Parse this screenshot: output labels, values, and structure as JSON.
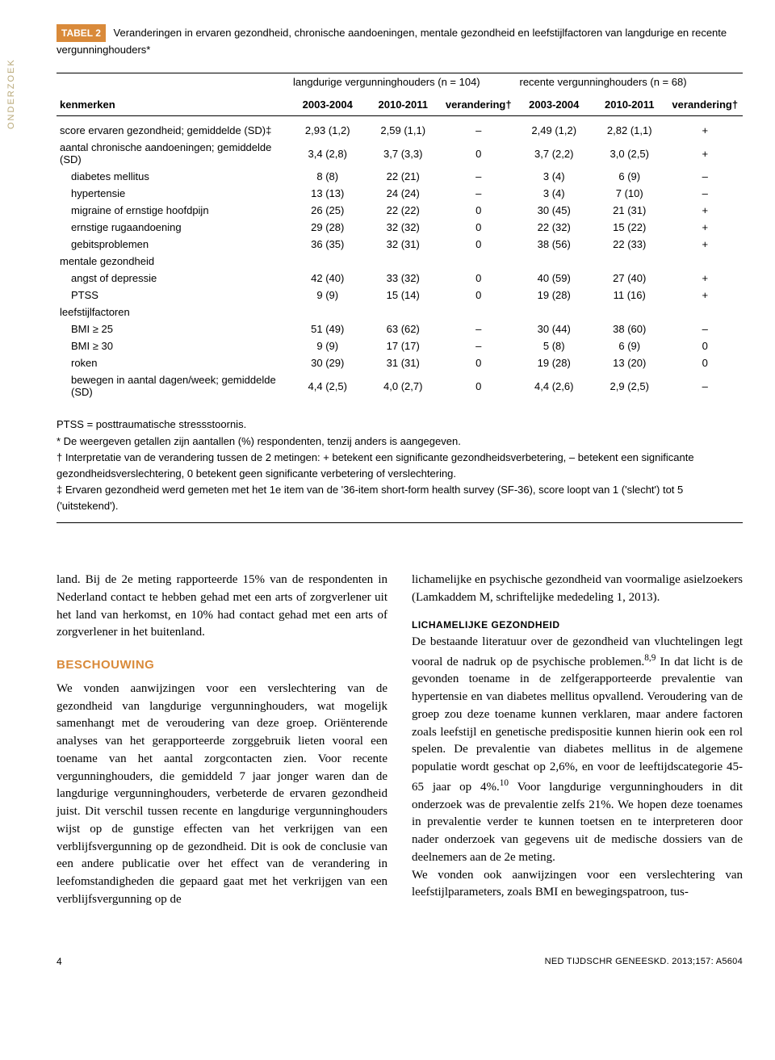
{
  "sidebar": {
    "label": "ONDERZOEK"
  },
  "table": {
    "marker": "TABEL 2",
    "caption": "Veranderingen in ervaren gezondheid, chronische aandoeningen, mentale gezondheid en leefstijlfactoren van langdurige en recente vergunninghouders*",
    "groupA": "langdurige vergunninghouders (n = 104)",
    "groupB": "recente vergunninghouders (n = 68)",
    "columns": [
      "kenmerken",
      "2003-2004",
      "2010-2011",
      "verandering†",
      "2003-2004",
      "2010-2011",
      "verandering†"
    ],
    "rows": [
      {
        "label": "score ervaren gezondheid; gemiddelde (SD)‡",
        "indent": 0,
        "c": [
          "2,93 (1,2)",
          "2,59 (1,1)",
          "–",
          "2,49 (1,2)",
          "2,82 (1,1)",
          "+"
        ]
      },
      {
        "label": "aantal chronische aandoeningen; gemiddelde (SD)",
        "indent": 0,
        "c": [
          "3,4 (2,8)",
          "3,7 (3,3)",
          "0",
          "3,7 (2,2)",
          "3,0 (2,5)",
          "+"
        ]
      },
      {
        "label": "diabetes mellitus",
        "indent": 1,
        "c": [
          "8 (8)",
          "22 (21)",
          "–",
          "3 (4)",
          "6 (9)",
          "–"
        ]
      },
      {
        "label": "hypertensie",
        "indent": 1,
        "c": [
          "13 (13)",
          "24 (24)",
          "–",
          "3 (4)",
          "7 (10)",
          "–"
        ]
      },
      {
        "label": "migraine of ernstige hoofdpijn",
        "indent": 1,
        "c": [
          "26 (25)",
          "22 (22)",
          "0",
          "30 (45)",
          "21 (31)",
          "+"
        ]
      },
      {
        "label": "ernstige rugaandoening",
        "indent": 1,
        "c": [
          "29 (28)",
          "32 (32)",
          "0",
          "22 (32)",
          "15 (22)",
          "+"
        ]
      },
      {
        "label": "gebitsproblemen",
        "indent": 1,
        "c": [
          "36 (35)",
          "32 (31)",
          "0",
          "38 (56)",
          "22 (33)",
          "+"
        ]
      },
      {
        "label": "mentale gezondheid",
        "indent": 0,
        "c": [
          "",
          "",
          "",
          "",
          "",
          ""
        ]
      },
      {
        "label": "angst of depressie",
        "indent": 1,
        "c": [
          "42 (40)",
          "33 (32)",
          "0",
          "40 (59)",
          "27 (40)",
          "+"
        ]
      },
      {
        "label": "PTSS",
        "indent": 1,
        "c": [
          "9 (9)",
          "15 (14)",
          "0",
          "19 (28)",
          "11 (16)",
          "+"
        ]
      },
      {
        "label": "leefstijlfactoren",
        "indent": 0,
        "c": [
          "",
          "",
          "",
          "",
          "",
          ""
        ]
      },
      {
        "label": "BMI ≥ 25",
        "indent": 1,
        "c": [
          "51 (49)",
          "63 (62)",
          "–",
          "30 (44)",
          "38 (60)",
          "–"
        ]
      },
      {
        "label": "BMI ≥ 30",
        "indent": 1,
        "c": [
          "9 (9)",
          "17 (17)",
          "–",
          "5 (8)",
          "6 (9)",
          "0"
        ]
      },
      {
        "label": "roken",
        "indent": 1,
        "c": [
          "30 (29)",
          "31 (31)",
          "0",
          "19 (28)",
          "13 (20)",
          "0"
        ]
      },
      {
        "label": "bewegen in aantal dagen/week; gemiddelde (SD)",
        "indent": 1,
        "c": [
          "4,4 (2,5)",
          "4,0 (2,7)",
          "0",
          "4,4 (2,6)",
          "2,9 (2,5)",
          "–"
        ]
      }
    ],
    "footnotes": [
      "PTSS = posttraumatische stressstoornis.",
      "* De weergeven getallen zijn aantallen (%) respondenten, tenzij anders is aangegeven.",
      "† Interpretatie van de verandering tussen de 2 metingen: + betekent een significante gezondheidsverbetering, – betekent een significante gezondheidsverslechtering, 0 betekent geen significante verbetering of verslechtering.",
      "‡ Ervaren gezondheid werd gemeten met het 1e item van de '36-item short-form health survey (SF-36), score loopt van 1 ('slecht') tot 5 ('uitstekend')."
    ]
  },
  "body": {
    "left": {
      "p1": "land. Bij de 2e meting rapporteerde 15% van de respondenten in Nederland contact te hebben gehad met een arts of zorgverlener uit het land van herkomst, en 10% had contact gehad met een arts of zorgverlener in het buitenland.",
      "head": "BESCHOUWING",
      "p2": "We vonden aanwijzingen voor een verslechtering van de gezondheid van langdurige vergunninghouders, wat mogelijk samenhangt met de veroudering van deze groep. Oriënterende analyses van het gerapporteerde zorggebruik lieten vooral een toename van het aantal zorgcontacten zien. Voor recente vergunninghouders, die gemiddeld 7 jaar jonger waren dan de langdurige vergunninghouders, verbeterde de ervaren gezondheid juist. Dit verschil tussen recente en langdurige vergunninghouders wijst op de gunstige effecten van het verkrijgen van een verblijfsvergunning op de gezondheid. Dit is ook de conclusie van een andere publicatie over het effect van de verandering in leefomstandigheden die gepaard gaat met het verkrijgen van een verblijfsvergunning op de"
    },
    "right": {
      "p1": "lichamelijke en psychische gezondheid van voormalige asielzoekers (Lamkaddem M, schriftelijke mededeling 1, 2013).",
      "sub": "LICHAMELIJKE GEZONDHEID",
      "p2a": "De bestaande literatuur over de gezondheid van vluchtelingen legt vooral de nadruk op de psychische problemen.",
      "p2b": " In dat licht is de gevonden toename in de zelfgerapporteerde prevalentie van hypertensie en van diabetes mellitus opvallend. Veroudering van de groep zou deze toename kunnen verklaren, maar andere factoren zoals leefstijl en genetische predispositie kunnen hierin ook een rol spelen. De prevalentie van diabetes mellitus in de algemene populatie wordt geschat op 2,6%, en voor de leeftijdscategorie 45-65 jaar op 4%.",
      "p2c": " Voor langdurige vergunninghouders in dit onderzoek was de prevalentie zelfs 21%. We hopen deze toenames in prevalentie verder te kunnen toetsen en te interpreteren door nader onderzoek van gegevens uit de medische dossiers van de deelnemers aan de 2e meting.",
      "p3": "We vonden ook aanwijzingen voor een verslechtering van leefstijlparameters, zoals BMI en bewegingspatroon, tus-",
      "ref89": "8,9",
      "ref10": "10"
    }
  },
  "footer": {
    "page": "4",
    "journal": "NED TIJDSCHR GENEESKD. 2013;157: A5604"
  },
  "colors": {
    "accent": "#d98a3a",
    "sidebar": "#b8a878",
    "text": "#000000",
    "background": "#ffffff"
  }
}
